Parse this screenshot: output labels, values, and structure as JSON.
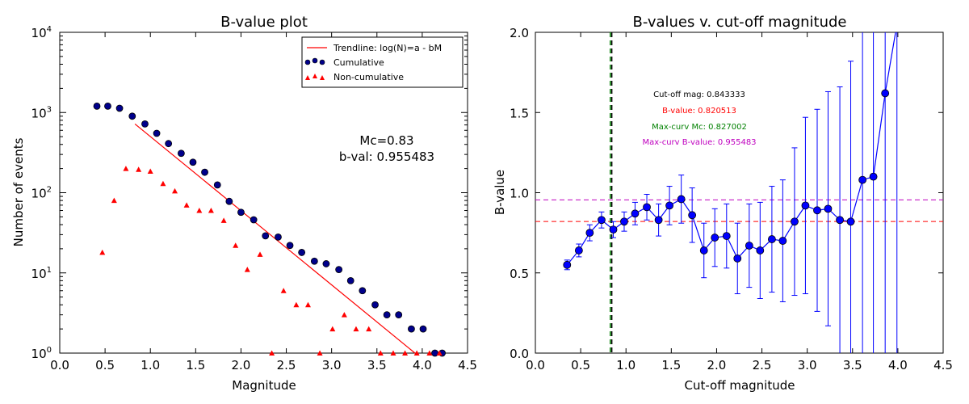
{
  "chart_data": [
    {
      "type": "scatter",
      "title": "B-value plot",
      "xlabel": "Magnitude",
      "ylabel": "Number of events",
      "xlim": [
        0.0,
        4.5
      ],
      "ylim": [
        1,
        10000
      ],
      "y_scale": "log",
      "x_ticks": [
        "0.0",
        "0.5",
        "1.0",
        "1.5",
        "2.0",
        "2.5",
        "3.0",
        "3.5",
        "4.0",
        "4.5"
      ],
      "y_ticks": [
        {
          "value": 1,
          "base": "10",
          "exp": "0"
        },
        {
          "value": 10,
          "base": "10",
          "exp": "1"
        },
        {
          "value": 100,
          "base": "10",
          "exp": "2"
        },
        {
          "value": 1000,
          "base": "10",
          "exp": "3"
        },
        {
          "value": 10000,
          "base": "10",
          "exp": "4"
        }
      ],
      "legend_position": "top-right",
      "legend": [
        "Trendline: log(N)=a - bM",
        "Cumulative",
        "Non-cumulative"
      ],
      "annotation": [
        "Mc=0.83",
        "b-val: 0.955483"
      ],
      "colors": {
        "trendline": "#ff0000",
        "cumulative": "#00008b",
        "non_cumulative": "#ff0000"
      },
      "trendline": {
        "x": [
          0.83,
          3.92
        ],
        "y": [
          720,
          1
        ]
      },
      "cumulative": {
        "x": [
          0.41,
          0.53,
          0.66,
          0.8,
          0.94,
          1.07,
          1.2,
          1.34,
          1.47,
          1.6,
          1.74,
          1.87,
          2.0,
          2.14,
          2.27,
          2.41,
          2.54,
          2.67,
          2.81,
          2.94,
          3.08,
          3.21,
          3.34,
          3.48,
          3.61,
          3.74,
          3.88,
          4.01,
          4.14,
          4.22
        ],
        "y": [
          1200,
          1200,
          1130,
          900,
          720,
          550,
          410,
          310,
          240,
          180,
          125,
          78,
          57,
          46,
          29,
          28,
          22,
          18,
          14,
          13,
          11,
          8,
          6,
          4,
          3,
          3,
          2,
          2,
          1,
          1
        ]
      },
      "non_cumulative": {
        "x": [
          0.47,
          0.6,
          0.73,
          0.87,
          1.0,
          1.14,
          1.27,
          1.4,
          1.54,
          1.67,
          1.81,
          1.94,
          2.07,
          2.21,
          2.34,
          2.47,
          2.61,
          2.74,
          2.87,
          3.01,
          3.14,
          3.27,
          3.41,
          3.54,
          3.68,
          3.81,
          3.94,
          4.08,
          4.19
        ],
        "y": [
          18,
          80,
          200,
          195,
          185,
          130,
          105,
          70,
          60,
          60,
          45,
          22,
          11,
          17,
          1,
          6,
          4,
          4,
          1,
          2,
          3,
          2,
          2,
          1,
          1,
          1,
          1,
          1,
          1
        ]
      }
    },
    {
      "type": "line",
      "title": "B-values v. cut-off magnitude",
      "xlabel": "Cut-off magnitude",
      "ylabel": "B-value",
      "xlim": [
        0.0,
        4.5
      ],
      "ylim": [
        0.0,
        2.0
      ],
      "x_ticks": [
        "0.0",
        "0.5",
        "1.0",
        "1.5",
        "2.0",
        "2.5",
        "3.0",
        "3.5",
        "4.0",
        "4.5"
      ],
      "y_ticks": [
        "0.0",
        "0.5",
        "1.0",
        "1.5",
        "2.0"
      ],
      "annotations": [
        {
          "text": "Cut-off mag: 0.843333",
          "color": "#000000"
        },
        {
          "text": "B-value: 0.820513",
          "color": "#ff0000"
        },
        {
          "text": "Max-curv Mc: 0.827002",
          "color": "#008000"
        },
        {
          "text": "Max-curv B-value: 0.955483",
          "color": "#bf00bf"
        }
      ],
      "colors": {
        "series": "#0000ff",
        "cutoff_line": "#000000",
        "maxcurv_mc_line": "#008000",
        "b_value_line": "#ff0000",
        "maxcurv_b_line": "#bf00bf"
      },
      "cutoff_mag": 0.843333,
      "maxcurv_mc": 0.827002,
      "b_value": 0.820513,
      "maxcurv_b_value": 0.955483,
      "series": [
        {
          "x": [
            0.35,
            0.48,
            0.6,
            0.73,
            0.86,
            0.98,
            1.1,
            1.23,
            1.36,
            1.48,
            1.61,
            1.73,
            1.86,
            1.98,
            2.11,
            2.23,
            2.36,
            2.48,
            2.61,
            2.73,
            2.86,
            2.98,
            3.11,
            3.23,
            3.36,
            3.48,
            3.61,
            3.73,
            3.86,
            3.99
          ],
          "y": [
            0.55,
            0.64,
            0.75,
            0.83,
            0.77,
            0.82,
            0.87,
            0.91,
            0.83,
            0.92,
            0.96,
            0.86,
            0.64,
            0.72,
            0.73,
            0.59,
            0.67,
            0.64,
            0.71,
            0.7,
            0.82,
            0.92,
            0.89,
            0.9,
            0.83,
            0.82,
            1.08,
            1.1,
            1.62,
            2.05
          ],
          "err": [
            0.03,
            0.04,
            0.05,
            0.05,
            0.05,
            0.06,
            0.07,
            0.08,
            0.1,
            0.12,
            0.15,
            0.17,
            0.17,
            0.18,
            0.2,
            0.22,
            0.26,
            0.3,
            0.33,
            0.38,
            0.46,
            0.55,
            0.63,
            0.73,
            0.83,
            1.0,
            1.3,
            1.55,
            2.1,
            2.4
          ]
        }
      ]
    }
  ]
}
